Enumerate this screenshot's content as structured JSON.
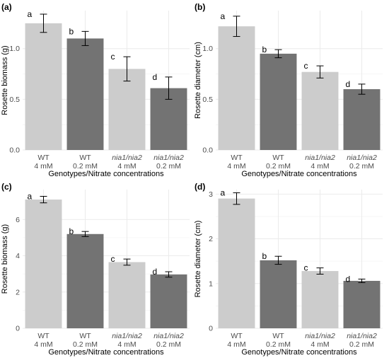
{
  "chart_data": [
    {
      "type": "bar",
      "panel_label": "(a)",
      "categories": [
        {
          "genotype": "WT",
          "nitrate": "4 mM",
          "italic": false
        },
        {
          "genotype": "WT",
          "nitrate": "0.2 mM",
          "italic": false
        },
        {
          "genotype": "nia1/nia2",
          "nitrate": "4 mM",
          "italic": true
        },
        {
          "genotype": "nia1/nia2",
          "nitrate": "0.2 mM",
          "italic": true
        }
      ],
      "values": [
        1.25,
        1.1,
        0.8,
        0.61
      ],
      "errors": [
        0.09,
        0.07,
        0.12,
        0.11
      ],
      "letters": [
        "a",
        "b",
        "c",
        "d"
      ],
      "colors": [
        "#cccccc",
        "#737373",
        "#cccccc",
        "#737373"
      ],
      "ylabel": "Rosette biomass (g)",
      "xlabel": "Genotypes/Nitrate concentrations",
      "ylim": [
        0,
        1.375
      ],
      "yticks": [
        0,
        0.5,
        1.0
      ],
      "ytick_labels": [
        "0.0",
        "0.5",
        "1.0"
      ],
      "grid": true
    },
    {
      "type": "bar",
      "panel_label": "(b)",
      "categories": [
        {
          "genotype": "WT",
          "nitrate": "4 mM",
          "italic": false
        },
        {
          "genotype": "WT",
          "nitrate": "0.2 mM",
          "italic": false
        },
        {
          "genotype": "nia1/nia2",
          "nitrate": "4 mM",
          "italic": true
        },
        {
          "genotype": "nia1/nia2",
          "nitrate": "0.2 mM",
          "italic": true
        }
      ],
      "values": [
        1.22,
        0.95,
        0.77,
        0.6
      ],
      "errors": [
        0.1,
        0.04,
        0.06,
        0.05
      ],
      "letters": [
        "a",
        "b",
        "c",
        "d"
      ],
      "colors": [
        "#cccccc",
        "#737373",
        "#cccccc",
        "#737373"
      ],
      "ylabel": "Rosette diameter (cm)",
      "xlabel": "Genotypes/Nitrate concentrations",
      "ylim": [
        0,
        1.375
      ],
      "yticks": [
        0,
        0.5,
        1.0
      ],
      "ytick_labels": [
        "0.0",
        "0.5",
        "1.0"
      ],
      "grid": true
    },
    {
      "type": "bar",
      "panel_label": "(c)",
      "categories": [
        {
          "genotype": "WT",
          "nitrate": "4 mM",
          "italic": false
        },
        {
          "genotype": "WT",
          "nitrate": "0.2 mM",
          "italic": false
        },
        {
          "genotype": "nia1/nia2",
          "nitrate": "4 mM",
          "italic": true
        },
        {
          "genotype": "nia1/nia2",
          "nitrate": "0.2 mM",
          "italic": true
        }
      ],
      "values": [
        7.1,
        5.2,
        3.65,
        2.97
      ],
      "errors": [
        0.18,
        0.14,
        0.17,
        0.15
      ],
      "letters": [
        "a",
        "b",
        "c",
        "d"
      ],
      "colors": [
        "#cccccc",
        "#737373",
        "#cccccc",
        "#737373"
      ],
      "ylabel": "Rosette biomass (g)",
      "xlabel": "Genotypes/Nitrate concentrations",
      "ylim": [
        0,
        7.65
      ],
      "yticks": [
        0,
        2,
        4,
        6
      ],
      "ytick_labels": [
        "0",
        "2",
        "4",
        "6"
      ],
      "grid": true
    },
    {
      "type": "bar",
      "panel_label": "(d)",
      "categories": [
        {
          "genotype": "WT",
          "nitrate": "4 mM",
          "italic": false
        },
        {
          "genotype": "WT",
          "nitrate": "0.2 mM",
          "italic": false
        },
        {
          "genotype": "nia1/nia2",
          "nitrate": "4 mM",
          "italic": true
        },
        {
          "genotype": "nia1/nia2",
          "nitrate": "0.2 mM",
          "italic": true
        }
      ],
      "values": [
        2.9,
        1.52,
        1.28,
        1.06
      ],
      "errors": [
        0.13,
        0.09,
        0.07,
        0.04
      ],
      "letters": [
        "a",
        "b",
        "c",
        "d"
      ],
      "colors": [
        "#cccccc",
        "#737373",
        "#cccccc",
        "#737373"
      ],
      "ylabel": "Rosette diameter (cm)",
      "xlabel": "Genotypes/Nitrate concentrations",
      "ylim": [
        0,
        3.1
      ],
      "yticks": [
        0,
        1,
        2,
        3
      ],
      "ytick_labels": [
        "0",
        "1",
        "2",
        "3"
      ],
      "grid": true
    }
  ]
}
